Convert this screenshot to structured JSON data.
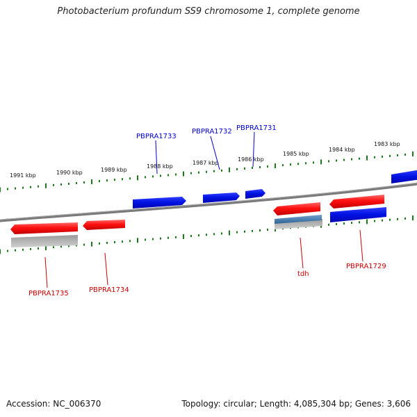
{
  "header": {
    "title": "Photobacterium profundum SS9 chromosome 1, complete genome"
  },
  "footer": {
    "accession": "Accession: NC_006370",
    "summary": "Topology: circular; Length: 4,085,304 bp; Genes: 3,606"
  },
  "scale": {
    "ticks": [
      {
        "label": "1991 kbp",
        "kbp": 1991
      },
      {
        "label": "1990 kbp",
        "kbp": 1990
      },
      {
        "label": "1989 kbp",
        "kbp": 1989
      },
      {
        "label": "1988 kbp",
        "kbp": 1988
      },
      {
        "label": "1987 kbp",
        "kbp": 1987
      },
      {
        "label": "1986 kbp",
        "kbp": 1986
      },
      {
        "label": "1985 kbp",
        "kbp": 1985
      },
      {
        "label": "1984 kbp",
        "kbp": 1984
      },
      {
        "label": "1983 kbp",
        "kbp": 1983
      }
    ]
  },
  "genes": [
    {
      "label": "PBPRA1735",
      "color": "#cc0000",
      "strand": "minus",
      "type": "gene"
    },
    {
      "label": "PBPRA1734",
      "color": "#cc0000",
      "strand": "minus",
      "type": "gene"
    },
    {
      "label": "PBPRA1733",
      "color": "#0000cc",
      "strand": "plus",
      "type": "gene"
    },
    {
      "label": "PBPRA1732",
      "color": "#0000cc",
      "strand": "plus",
      "type": "gene"
    },
    {
      "label": "PBPRA1731",
      "color": "#0000cc",
      "strand": "plus",
      "type": "gene"
    },
    {
      "label": "tdh",
      "color": "#cc0000",
      "strand": "minus",
      "type": "gene"
    },
    {
      "label": "PBPRA1729",
      "color": "#cc0000",
      "strand": "minus",
      "type": "gene"
    }
  ],
  "colors": {
    "minus_gene": "#ff2020",
    "plus_gene": "#0010e0",
    "backbone": "#808080",
    "tick": "#1a7a1a",
    "grey_feature": "#b8b8b8",
    "steel_feature": "#4a7fb0"
  }
}
